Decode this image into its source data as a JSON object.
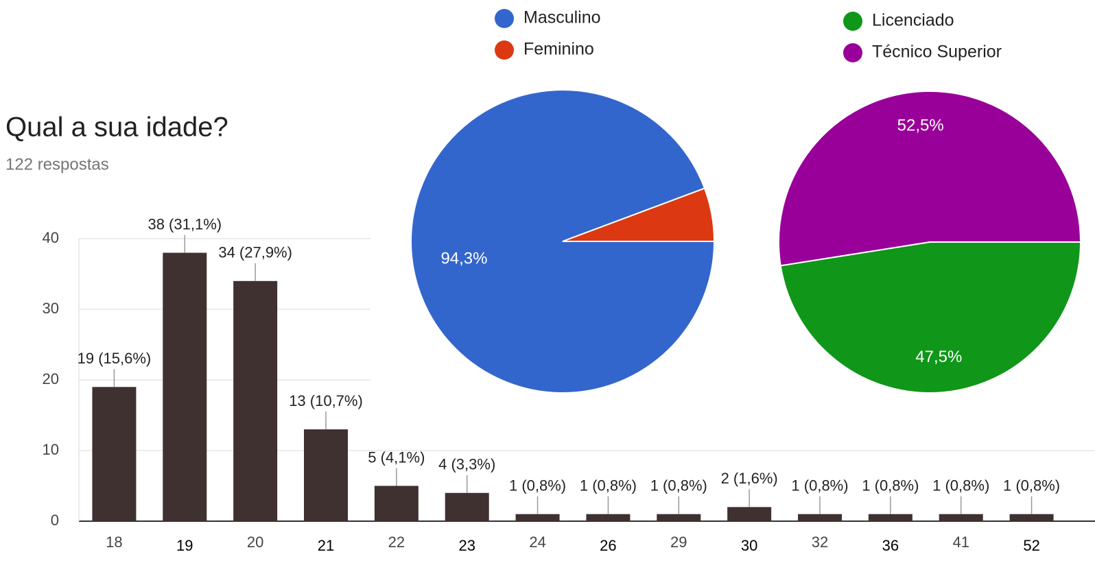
{
  "chart_data": [
    {
      "type": "bar",
      "title": "Qual a sua idade?",
      "subtitle": "122 respostas",
      "categories": [
        "18",
        "19",
        "20",
        "21",
        "22",
        "23",
        "24",
        "26",
        "29",
        "30",
        "32",
        "36",
        "41",
        "52"
      ],
      "values": [
        19,
        38,
        34,
        13,
        5,
        4,
        1,
        1,
        1,
        2,
        1,
        1,
        1,
        1
      ],
      "value_labels": [
        "19 (15,6%)",
        "38 (31,1%)",
        "34 (27,9%)",
        "13 (10,7%)",
        "5 (4,1%)",
        "4 (3,3%)",
        "1 (0,8%)",
        "1 (0,8%)",
        "1 (0,8%)",
        "2 (1,6%)",
        "1 (0,8%)",
        "1 (0,8%)",
        "1 (0,8%)",
        "1 (0,8%)"
      ],
      "color": "#3f3130",
      "ylim": [
        0,
        40
      ],
      "yticks": [
        0,
        10,
        20,
        30,
        40
      ],
      "grid": true
    },
    {
      "type": "pie",
      "categories": [
        "Masculino",
        "Feminino"
      ],
      "values": [
        94.3,
        5.7
      ],
      "value_labels": [
        "94,3%",
        null
      ],
      "colors": [
        "#3366cc",
        "#dc3912"
      ]
    },
    {
      "type": "pie",
      "categories": [
        "Licenciado",
        "Técnico Superior"
      ],
      "values": [
        47.5,
        52.5
      ],
      "value_labels": [
        "47,5%",
        "52,5%"
      ],
      "colors": [
        "#109618",
        "#990099"
      ]
    }
  ]
}
